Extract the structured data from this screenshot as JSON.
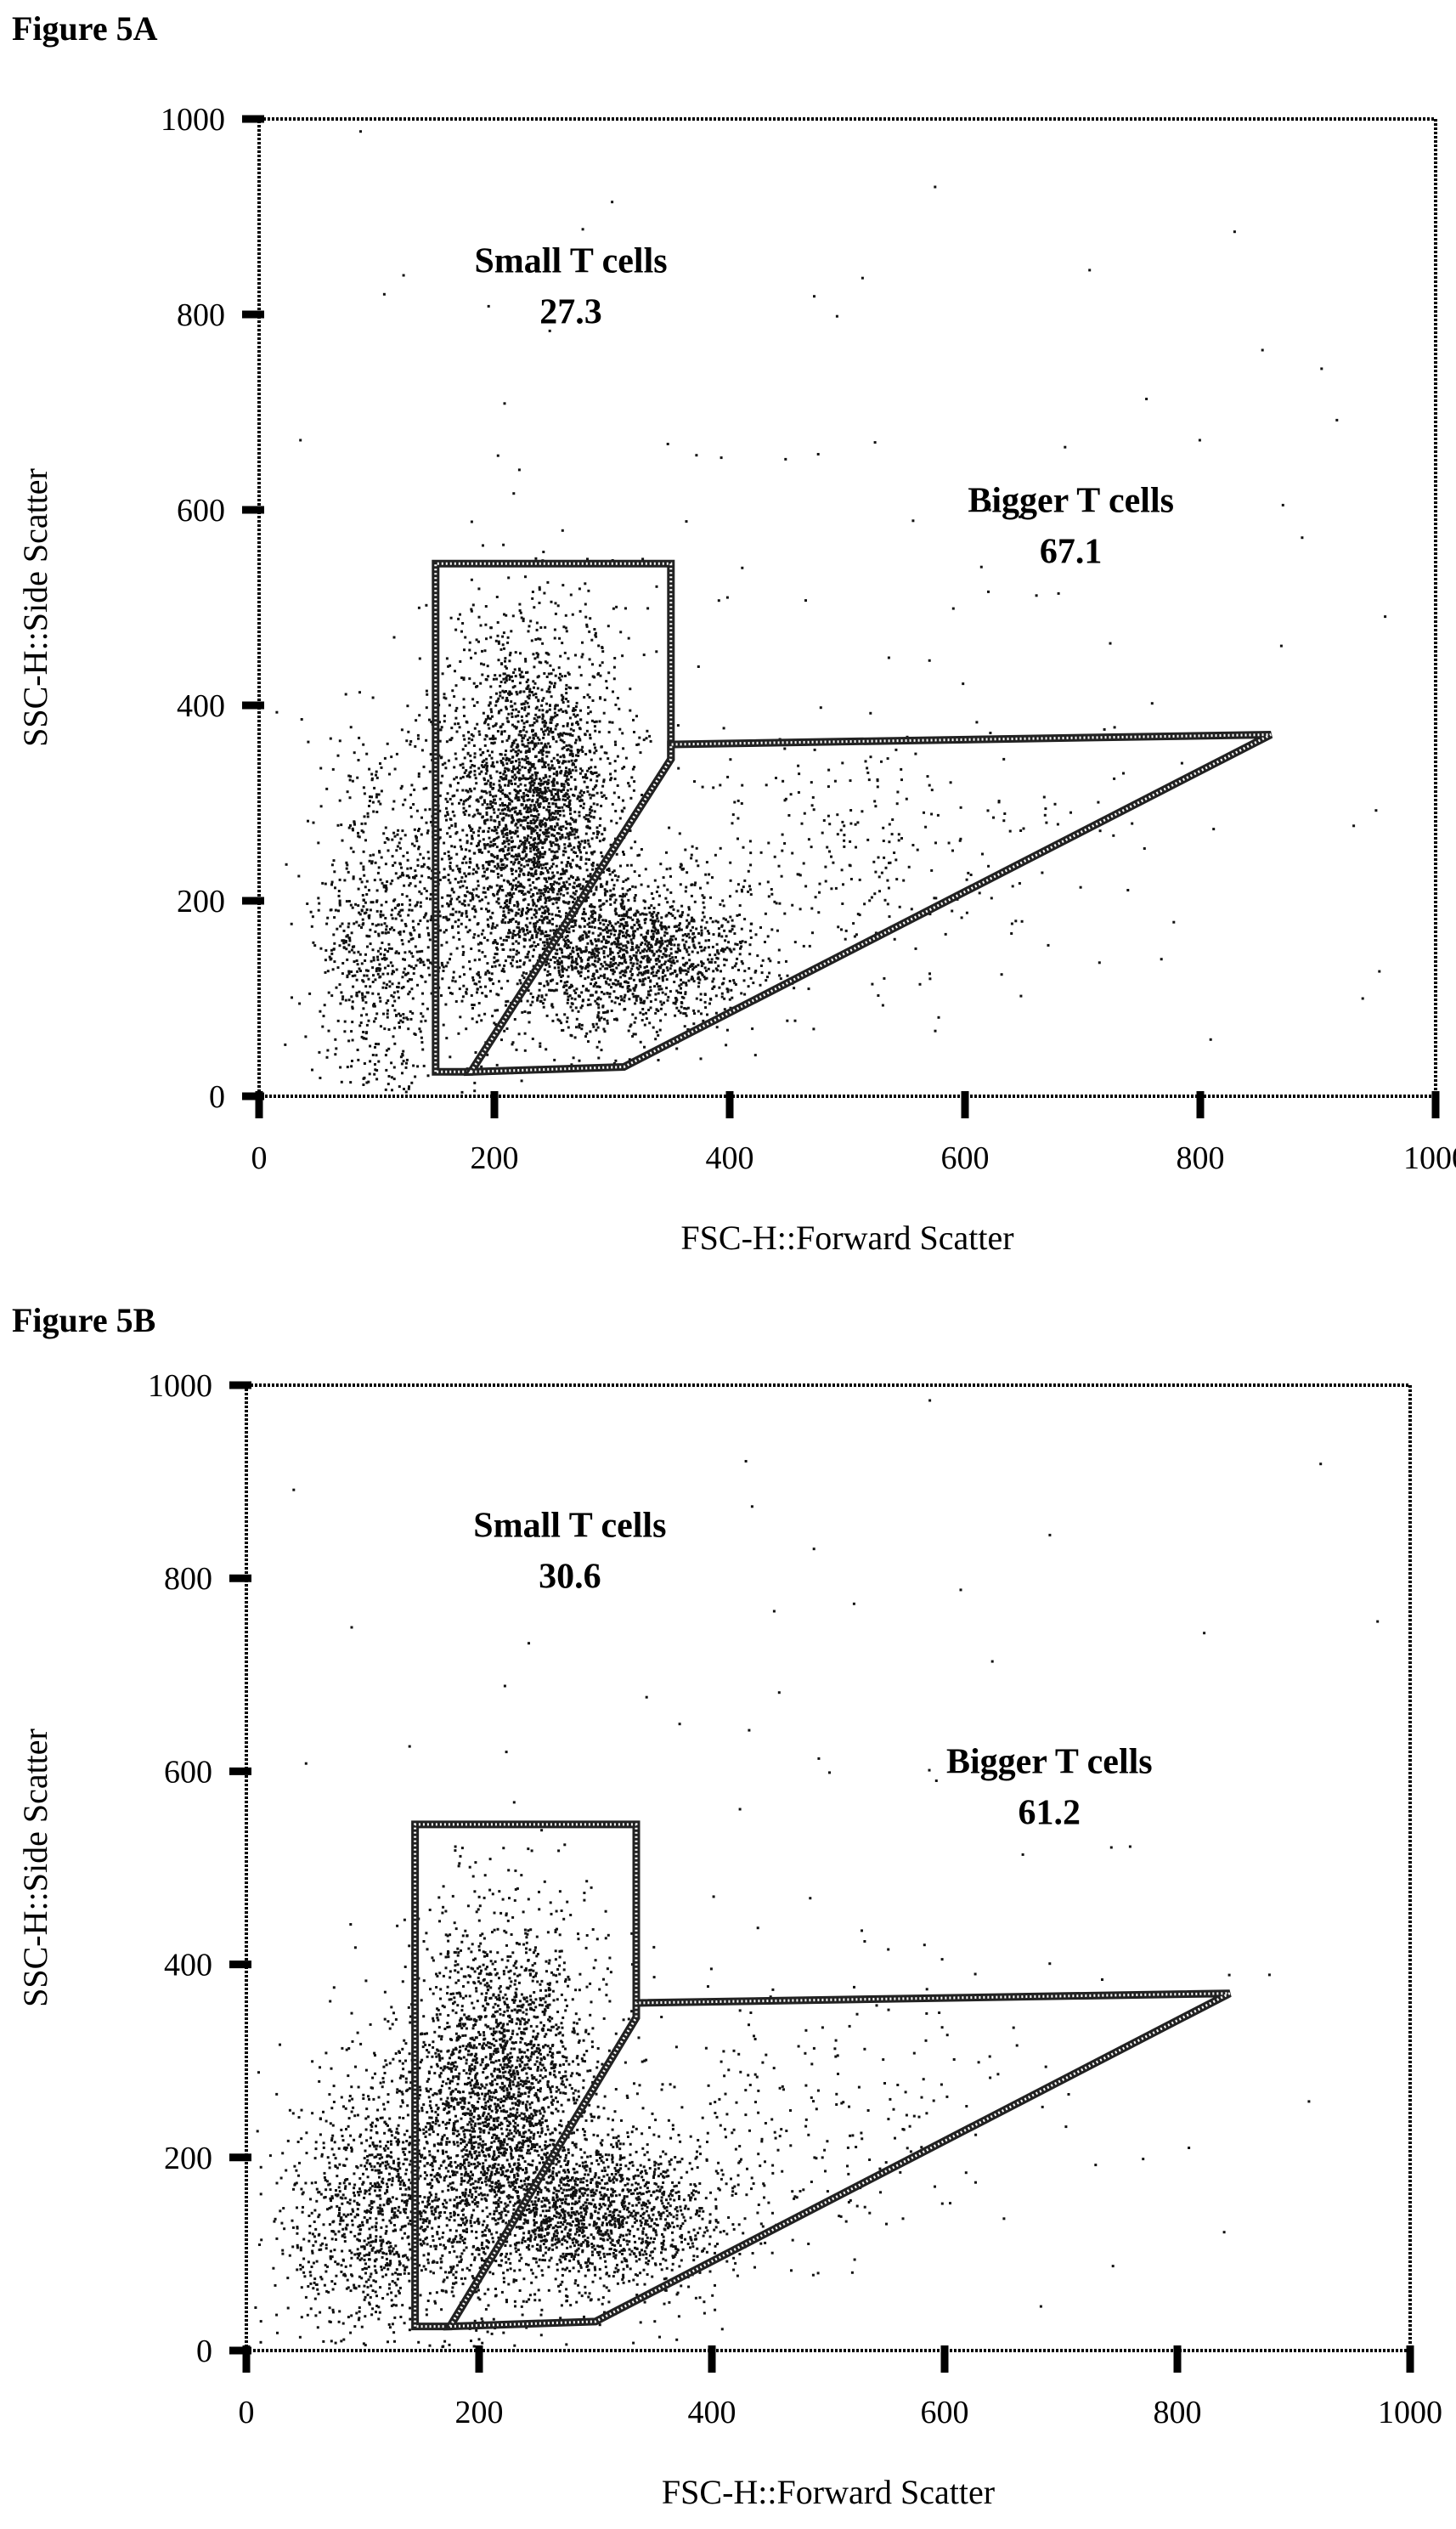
{
  "figure_a": {
    "label": "Figure 5A"
  },
  "figure_b": {
    "label": "Figure 5B"
  },
  "chart_data": [
    {
      "type": "scatter",
      "id": "a",
      "title": "",
      "xlabel": "FSC-H::Forward Scatter",
      "ylabel": "SSC-H::Side Scatter",
      "xlim": [
        0,
        1000
      ],
      "ylim": [
        0,
        1000
      ],
      "x_ticks": [
        0,
        200,
        400,
        600,
        800,
        1000
      ],
      "y_ticks": [
        0,
        200,
        400,
        600,
        800,
        1000
      ],
      "grid": false,
      "gates": [
        {
          "name": "Small T cells",
          "value": "27.3",
          "vertices": [
            [
              150,
              25
            ],
            [
              150,
              545
            ],
            [
              350,
              545
            ],
            [
              350,
              345
            ],
            [
              180,
              25
            ]
          ],
          "label_at": [
            265,
            843
          ]
        },
        {
          "name": "Bigger T cells",
          "value": "67.1",
          "vertices": [
            [
              180,
              25
            ],
            [
              350,
              345
            ],
            [
              350,
              360
            ],
            [
              860,
              370
            ],
            [
              310,
              30
            ]
          ],
          "label_at": [
            690,
            598
          ]
        }
      ],
      "populations": [
        {
          "cx": 230,
          "cy": 310,
          "sx": 38,
          "sy": 90,
          "n": 2400
        },
        {
          "cx": 320,
          "cy": 150,
          "sx": 55,
          "sy": 40,
          "n": 1500
        },
        {
          "cx": 100,
          "cy": 160,
          "sx": 28,
          "sy": 95,
          "n": 700
        },
        {
          "cx": 200,
          "cy": 200,
          "sx": 60,
          "sy": 80,
          "n": 700
        },
        {
          "cx": 520,
          "cy": 250,
          "sx": 80,
          "sy": 60,
          "n": 260
        },
        {
          "cx": 500,
          "cy": 450,
          "sx": 300,
          "sy": 300,
          "n": 120
        }
      ]
    },
    {
      "type": "scatter",
      "id": "b",
      "title": "",
      "xlabel": "FSC-H::Forward Scatter",
      "ylabel": "SSC-H::Side Scatter",
      "xlim": [
        0,
        1000
      ],
      "ylim": [
        0,
        1000
      ],
      "x_ticks": [
        0,
        200,
        400,
        600,
        800,
        1000
      ],
      "y_ticks": [
        0,
        200,
        400,
        600,
        800,
        1000
      ],
      "grid": false,
      "gates": [
        {
          "name": "Small T cells",
          "value": "30.6",
          "vertices": [
            [
              145,
              25
            ],
            [
              145,
              545
            ],
            [
              335,
              545
            ],
            [
              335,
              345
            ],
            [
              175,
              25
            ]
          ],
          "label_at": [
            278,
            843
          ]
        },
        {
          "name": "Bigger T cells",
          "value": "61.2",
          "vertices": [
            [
              175,
              25
            ],
            [
              335,
              345
            ],
            [
              335,
              360
            ],
            [
              845,
              370
            ],
            [
              300,
              30
            ]
          ],
          "label_at": [
            690,
            598
          ]
        }
      ],
      "populations": [
        {
          "cx": 220,
          "cy": 280,
          "sx": 40,
          "sy": 90,
          "n": 2200
        },
        {
          "cx": 310,
          "cy": 140,
          "sx": 55,
          "sy": 40,
          "n": 1400
        },
        {
          "cx": 110,
          "cy": 140,
          "sx": 40,
          "sy": 70,
          "n": 1000
        },
        {
          "cx": 200,
          "cy": 180,
          "sx": 60,
          "sy": 80,
          "n": 700
        },
        {
          "cx": 470,
          "cy": 250,
          "sx": 90,
          "sy": 70,
          "n": 240
        },
        {
          "cx": 500,
          "cy": 450,
          "sx": 300,
          "sy": 300,
          "n": 100
        }
      ]
    }
  ]
}
